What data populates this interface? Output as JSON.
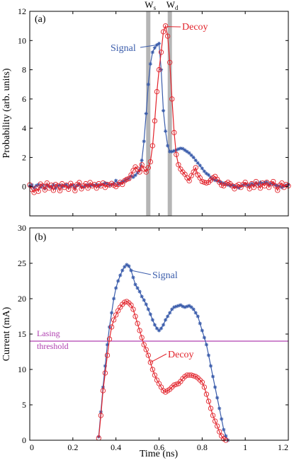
{
  "chart_data": [
    {
      "type": "line",
      "panel_label": "(a)",
      "ylabel": "Probability (arb. units)",
      "ylim": [
        -2,
        12
      ],
      "xlim": [
        0,
        1.2
      ],
      "yticks": [
        0,
        2,
        4,
        6,
        8,
        10,
        12
      ],
      "xticks": [
        0,
        0.2,
        0.4,
        0.6,
        0.8,
        1.0,
        1.2
      ],
      "show_xtick_labels": false,
      "grid": false,
      "windows": [
        {
          "name": "W_s",
          "label_main": "W",
          "label_sub": "s",
          "x": 0.55,
          "color": "#b5b5b5"
        },
        {
          "name": "W_d",
          "label_main": "W",
          "label_sub": "d",
          "x": 0.65,
          "color": "#b5b5b5"
        }
      ],
      "series": [
        {
          "name": "Signal",
          "color": "#3a5cab",
          "marker": "star",
          "x": [
            0.0,
            0.01,
            0.02,
            0.03,
            0.04,
            0.05,
            0.06,
            0.07,
            0.08,
            0.09,
            0.1,
            0.11,
            0.12,
            0.13,
            0.14,
            0.15,
            0.16,
            0.17,
            0.18,
            0.19,
            0.2,
            0.21,
            0.22,
            0.23,
            0.24,
            0.25,
            0.26,
            0.27,
            0.28,
            0.29,
            0.3,
            0.31,
            0.32,
            0.33,
            0.34,
            0.35,
            0.36,
            0.37,
            0.38,
            0.39,
            0.4,
            0.41,
            0.42,
            0.43,
            0.44,
            0.45,
            0.46,
            0.47,
            0.48,
            0.49,
            0.5,
            0.51,
            0.52,
            0.53,
            0.54,
            0.55,
            0.56,
            0.57,
            0.58,
            0.59,
            0.6,
            0.61,
            0.62,
            0.63,
            0.64,
            0.65,
            0.66,
            0.67,
            0.68,
            0.69,
            0.7,
            0.71,
            0.72,
            0.73,
            0.74,
            0.75,
            0.76,
            0.77,
            0.78,
            0.79,
            0.8,
            0.81,
            0.82,
            0.83,
            0.84,
            0.85,
            0.86,
            0.87,
            0.88,
            0.89,
            0.9,
            0.91,
            0.92,
            0.93,
            0.94,
            0.95,
            0.96,
            0.97,
            0.98,
            0.99,
            1.0,
            1.01,
            1.02,
            1.03,
            1.04,
            1.05,
            1.06,
            1.07,
            1.08,
            1.09,
            1.1,
            1.11,
            1.12,
            1.13,
            1.14,
            1.15,
            1.16,
            1.17,
            1.18,
            1.19,
            1.2
          ],
          "y": [
            0.04,
            0.12,
            -0.09,
            0.07,
            0.14,
            -0.04,
            0.09,
            -0.13,
            0.1,
            0.02,
            -0.06,
            0.13,
            -0.11,
            0.07,
            0.11,
            -0.02,
            0.09,
            0.13,
            -0.03,
            0.06,
            0.11,
            -0.05,
            0.09,
            0.14,
            0.01,
            -0.03,
            0.08,
            0.13,
            0.05,
            0.11,
            0.07,
            0.15,
            0.02,
            0.12,
            0.16,
            0.25,
            0.18,
            0.1,
            0.14,
            0.2,
            0.42,
            0.15,
            0.24,
            0.35,
            0.4,
            0.5,
            0.55,
            0.72,
            0.65,
            0.78,
            0.95,
            1.15,
            1.8,
            3.1,
            5.0,
            7.0,
            8.4,
            9.2,
            9.5,
            9.7,
            9.8,
            8.0,
            5.2,
            3.8,
            2.8,
            2.4,
            2.4,
            2.45,
            2.5,
            2.58,
            2.62,
            2.6,
            2.5,
            2.4,
            2.3,
            2.15,
            2.0,
            1.8,
            1.62,
            1.45,
            1.25,
            1.05,
            0.9,
            0.8,
            0.62,
            0.5,
            0.44,
            0.4,
            0.35,
            0.28,
            0.22,
            0.18,
            0.12,
            0.06,
            0.1,
            0.04,
            0.0,
            -0.08,
            0.05,
            0.12,
            0.18,
            0.1,
            0.08,
            0.2,
            0.12,
            0.25,
            0.15,
            0.3,
            0.2,
            0.28,
            0.3,
            0.15,
            0.22,
            0.18,
            0.1,
            0.06,
            0.02,
            -0.05,
            0.05,
            0.1,
            0.14
          ]
        },
        {
          "name": "Decoy",
          "color": "#e2232b",
          "marker": "circle",
          "x": [
            0.0,
            0.01,
            0.02,
            0.03,
            0.04,
            0.05,
            0.06,
            0.07,
            0.08,
            0.09,
            0.1,
            0.11,
            0.12,
            0.13,
            0.14,
            0.15,
            0.16,
            0.17,
            0.18,
            0.19,
            0.2,
            0.21,
            0.22,
            0.23,
            0.24,
            0.25,
            0.26,
            0.27,
            0.28,
            0.29,
            0.3,
            0.31,
            0.32,
            0.33,
            0.34,
            0.35,
            0.36,
            0.37,
            0.38,
            0.39,
            0.4,
            0.41,
            0.42,
            0.43,
            0.44,
            0.45,
            0.46,
            0.47,
            0.48,
            0.49,
            0.5,
            0.51,
            0.52,
            0.53,
            0.54,
            0.55,
            0.56,
            0.57,
            0.58,
            0.59,
            0.6,
            0.61,
            0.62,
            0.63,
            0.64,
            0.65,
            0.66,
            0.67,
            0.68,
            0.69,
            0.7,
            0.71,
            0.72,
            0.73,
            0.74,
            0.75,
            0.76,
            0.77,
            0.78,
            0.79,
            0.8,
            0.81,
            0.82,
            0.83,
            0.84,
            0.85,
            0.86,
            0.87,
            0.88,
            0.89,
            0.9,
            0.91,
            0.92,
            0.93,
            0.94,
            0.95,
            0.96,
            0.97,
            0.98,
            0.99,
            1.0,
            1.01,
            1.02,
            1.03,
            1.04,
            1.05,
            1.06,
            1.07,
            1.08,
            1.09,
            1.1,
            1.11,
            1.12,
            1.13,
            1.14,
            1.15,
            1.16,
            1.17,
            1.18,
            1.19,
            1.2
          ],
          "y": [
            0.12,
            -0.2,
            -0.4,
            -0.1,
            -0.32,
            0.18,
            0.05,
            -0.22,
            0.25,
            -0.1,
            0.1,
            -0.25,
            0.15,
            0.05,
            -0.28,
            0.2,
            -0.05,
            0.1,
            -0.18,
            0.22,
            0.05,
            -0.28,
            0.15,
            0.28,
            -0.15,
            0.05,
            0.2,
            -0.1,
            0.28,
            0.05,
            0.15,
            -0.1,
            0.2,
            0.05,
            0.25,
            -0.05,
            0.15,
            0.1,
            0.22,
            0.1,
            0.0,
            0.15,
            0.3,
            0.15,
            0.4,
            0.5,
            0.55,
            0.8,
            1.1,
            1.35,
            1.2,
            1.0,
            1.5,
            1.2,
            1.0,
            1.3,
            1.7,
            2.8,
            4.5,
            6.5,
            8.0,
            9.2,
            10.6,
            11.0,
            10.3,
            8.5,
            6.0,
            3.7,
            2.2,
            1.5,
            1.2,
            1.0,
            0.85,
            0.6,
            0.4,
            0.75,
            1.0,
            1.3,
            0.8,
            0.6,
            0.35,
            0.3,
            0.25,
            0.3,
            0.45,
            0.6,
            0.7,
            0.5,
            0.3,
            0.1,
            0.05,
            0.2,
            0.3,
            0.2,
            0.05,
            -0.15,
            0.05,
            0.15,
            -0.05,
            0.15,
            0.3,
            0.1,
            -0.15,
            0.2,
            -0.05,
            0.35,
            0.1,
            -0.1,
            0.25,
            0.05,
            0.3,
            -0.05,
            0.2,
            0.35,
            0.05,
            -0.25,
            0.1,
            0.25,
            -0.05,
            0.15,
            0.05
          ]
        }
      ],
      "annotations": [
        {
          "text": "Signal",
          "series": "Signal"
        },
        {
          "text": "Decoy",
          "series": "Decoy"
        }
      ]
    },
    {
      "type": "line",
      "panel_label": "(b)",
      "xlabel": "Time (ns)",
      "ylabel": "Current (mA)",
      "xlim": [
        0,
        1.2
      ],
      "ylim": [
        0,
        30
      ],
      "xticks": [
        0,
        0.2,
        0.4,
        0.6,
        0.8,
        1.0,
        1.2
      ],
      "xtick_labels": [
        "0",
        "0.2",
        "0.4",
        "0.6",
        "0.8",
        "1",
        "1.2"
      ],
      "yticks": [
        0,
        5,
        10,
        15,
        20,
        25,
        30
      ],
      "grid": false,
      "threshold": {
        "label_line1": "Lasing",
        "label_line2": "threshold",
        "y": 14,
        "color": "#b040b0"
      },
      "series": [
        {
          "name": "Signal",
          "color": "#3a5cab",
          "marker": "star",
          "x": [
            0.32,
            0.33,
            0.34,
            0.35,
            0.36,
            0.37,
            0.38,
            0.39,
            0.4,
            0.41,
            0.42,
            0.43,
            0.44,
            0.45,
            0.46,
            0.47,
            0.48,
            0.49,
            0.5,
            0.51,
            0.52,
            0.53,
            0.54,
            0.55,
            0.56,
            0.57,
            0.58,
            0.59,
            0.6,
            0.61,
            0.62,
            0.63,
            0.64,
            0.65,
            0.66,
            0.67,
            0.68,
            0.69,
            0.7,
            0.71,
            0.72,
            0.73,
            0.74,
            0.75,
            0.76,
            0.77,
            0.78,
            0.79,
            0.8,
            0.81,
            0.82,
            0.83,
            0.84,
            0.85,
            0.86,
            0.87,
            0.88,
            0.89,
            0.9,
            0.91,
            0.92
          ],
          "y": [
            0.5,
            4.0,
            7.5,
            10.5,
            13.5,
            16.0,
            18.0,
            20.0,
            21.5,
            22.5,
            23.3,
            24.0,
            24.5,
            24.8,
            24.6,
            24.0,
            23.0,
            22.0,
            21.5,
            21.0,
            20.3,
            19.8,
            19.2,
            18.5,
            17.8,
            17.0,
            16.3,
            15.8,
            15.5,
            15.8,
            16.3,
            17.0,
            17.5,
            18.0,
            18.5,
            18.8,
            18.9,
            19.0,
            19.1,
            18.9,
            18.8,
            18.9,
            19.0,
            18.8,
            18.5,
            18.0,
            17.5,
            16.5,
            15.5,
            14.5,
            13.5,
            12.0,
            10.5,
            9.0,
            7.5,
            6.0,
            4.5,
            3.0,
            1.5,
            0.6,
            0.0
          ]
        },
        {
          "name": "Decoy",
          "color": "#e2232b",
          "marker": "circle",
          "x": [
            0.32,
            0.33,
            0.34,
            0.35,
            0.36,
            0.37,
            0.38,
            0.39,
            0.4,
            0.41,
            0.42,
            0.43,
            0.44,
            0.45,
            0.46,
            0.47,
            0.48,
            0.49,
            0.5,
            0.51,
            0.52,
            0.53,
            0.54,
            0.55,
            0.56,
            0.57,
            0.58,
            0.59,
            0.6,
            0.61,
            0.62,
            0.63,
            0.64,
            0.65,
            0.66,
            0.67,
            0.68,
            0.69,
            0.7,
            0.71,
            0.72,
            0.73,
            0.74,
            0.75,
            0.76,
            0.77,
            0.78,
            0.79,
            0.8,
            0.81,
            0.82,
            0.83,
            0.84,
            0.85,
            0.86,
            0.87,
            0.88,
            0.89,
            0.9,
            0.91
          ],
          "y": [
            0.3,
            3.5,
            7.0,
            9.5,
            12.0,
            14.3,
            16.0,
            17.0,
            17.7,
            18.3,
            18.8,
            19.2,
            19.5,
            19.6,
            19.4,
            19.1,
            18.5,
            17.5,
            16.5,
            15.5,
            14.5,
            13.5,
            12.8,
            12.0,
            11.0,
            10.0,
            9.2,
            8.5,
            8.0,
            7.5,
            7.0,
            6.8,
            7.0,
            7.2,
            7.5,
            7.8,
            7.9,
            8.0,
            8.3,
            8.7,
            9.0,
            9.2,
            9.2,
            9.2,
            9.1,
            9.0,
            8.8,
            8.5,
            8.2,
            7.5,
            6.5,
            5.5,
            4.5,
            3.5,
            2.7,
            2.0,
            1.2,
            0.6,
            0.2,
            0.0
          ]
        }
      ],
      "annotations": [
        {
          "text": "Signal",
          "series": "Signal"
        },
        {
          "text": "Decoy",
          "series": "Decoy"
        }
      ]
    }
  ]
}
